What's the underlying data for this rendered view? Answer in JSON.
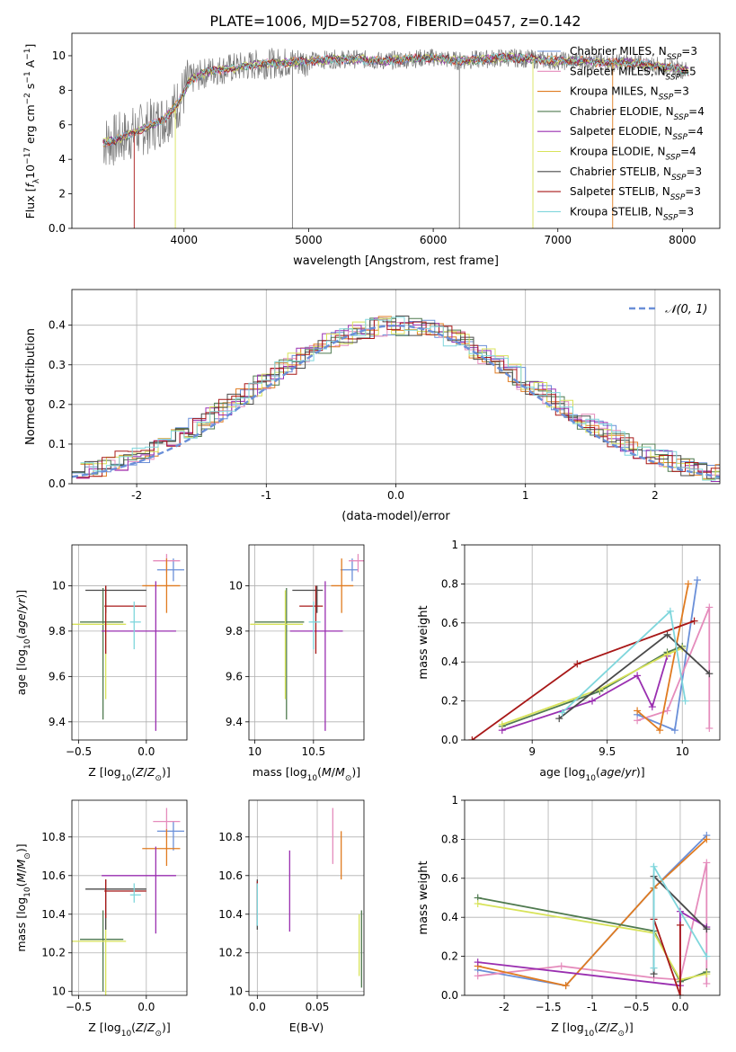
{
  "figure": {
    "title": "PLATE=1006, MJD=52708, FIBERID=0457, z=0.142"
  },
  "colors": {
    "chabrier_miles": "#6a8fd8",
    "salpeter_miles": "#e58cbc",
    "kroupa_miles": "#e07b20",
    "chabrier_elodie": "#4f7a4f",
    "salpeter_elodie": "#9a2fb0",
    "kroupa_elodie": "#d8e35a",
    "chabrier_stelib": "#4a4a4a",
    "salpeter_stelib": "#a81818",
    "kroupa_stelib": "#7fd6dc",
    "data": "#7a7a7a",
    "grid": "#b0b0b0"
  },
  "legend": {
    "spectrum": [
      {
        "label": "Chabrier MILES, N",
        "sub": "SSP",
        "tail": "=3",
        "color_key": "chabrier_miles"
      },
      {
        "label": "Salpeter MILES, N",
        "sub": "SSP",
        "tail": "=5",
        "color_key": "salpeter_miles"
      },
      {
        "label": "Kroupa MILES, N",
        "sub": "SSP",
        "tail": "=3",
        "color_key": "kroupa_miles"
      },
      {
        "label": "Chabrier ELODIE, N",
        "sub": "SSP",
        "tail": "=4",
        "color_key": "chabrier_elodie"
      },
      {
        "label": "Salpeter ELODIE, N",
        "sub": "SSP",
        "tail": "=4",
        "color_key": "salpeter_elodie"
      },
      {
        "label": "Kroupa ELODIE, N",
        "sub": "SSP",
        "tail": "=4",
        "color_key": "kroupa_elodie"
      },
      {
        "label": "Chabrier STELIB, N",
        "sub": "SSP",
        "tail": "=3",
        "color_key": "chabrier_stelib"
      },
      {
        "label": "Salpeter STELIB, N",
        "sub": "SSP",
        "tail": "=3",
        "color_key": "salpeter_stelib"
      },
      {
        "label": "Kroupa STELIB, N",
        "sub": "SSP",
        "tail": "=3",
        "color_key": "kroupa_stelib"
      }
    ],
    "normal": "𝒩(0, 1)"
  },
  "chart_data": [
    {
      "id": "spectrum",
      "type": "line",
      "xlabel": "wavelength [Angstrom, rest frame]",
      "ylabel": "Flux [fλ10⁻¹⁷ erg cm⁻² s⁻¹ A⁻¹]",
      "xlim": [
        3100,
        8300
      ],
      "ylim": [
        0,
        11.3
      ],
      "xticks": [
        4000,
        5000,
        6000,
        7000,
        8000
      ],
      "yticks": [
        0,
        2,
        4,
        6,
        8,
        10
      ],
      "grid": false,
      "legend_position": "upper right",
      "continuum": {
        "x": [
          3350,
          3450,
          3550,
          3650,
          3750,
          3850,
          3950,
          4050,
          4200,
          4400,
          4600,
          4800,
          5000,
          5200,
          5400,
          5600,
          5800,
          6000,
          6200,
          6400,
          6600,
          6800,
          7000,
          7200,
          7400,
          7600,
          7800,
          8000,
          8050
        ],
        "y": [
          5.0,
          5.1,
          5.4,
          5.7,
          6.0,
          6.4,
          7.2,
          8.6,
          9.1,
          9.3,
          9.5,
          9.6,
          9.7,
          9.8,
          9.8,
          9.7,
          9.8,
          9.9,
          9.7,
          9.8,
          9.9,
          9.8,
          9.7,
          9.7,
          9.6,
          9.6,
          9.4,
          9.2,
          9.1
        ]
      },
      "drops": [
        {
          "x": 3600,
          "color_key": "salpeter_stelib"
        },
        {
          "x": 3930,
          "color_key": "kroupa_elodie"
        },
        {
          "x": 4870,
          "color_key": "data"
        },
        {
          "x": 6210,
          "color_key": "data"
        },
        {
          "x": 6800,
          "color_key": "kroupa_elodie"
        },
        {
          "x": 7440,
          "color_key": "kroupa_miles"
        }
      ]
    },
    {
      "id": "residuals",
      "type": "step",
      "xlabel": "(data-model)/error",
      "ylabel": "Normed distribution",
      "xlim": [
        -2.5,
        2.5
      ],
      "ylim": [
        0,
        0.49
      ],
      "xticks": [
        -2,
        -1,
        0,
        1,
        2
      ],
      "yticks": [
        0.0,
        0.1,
        0.2,
        0.3,
        0.4
      ],
      "grid": true,
      "legend_position": "upper right"
    },
    {
      "id": "age_vs_Z",
      "type": "errorbar",
      "xlabel": "Z [log10(Z/Z⊙)]",
      "ylabel": "age [log10(age/yr)]",
      "xlim": [
        -0.55,
        0.3
      ],
      "ylim": [
        9.32,
        10.18
      ],
      "xticks": [
        -0.5,
        0.0
      ],
      "yticks": [
        9.4,
        9.6,
        9.8,
        10.0
      ],
      "grid": true,
      "points": [
        {
          "x": 0.2,
          "y": 10.07,
          "xerr": [
            0.12,
            0.08
          ],
          "yerr": [
            0.05,
            0.05
          ],
          "color_key": "chabrier_miles"
        },
        {
          "x": 0.15,
          "y": 10.11,
          "xerr": [
            0.1,
            0.1
          ],
          "yerr": [
            0.05,
            0.03
          ],
          "color_key": "salpeter_miles"
        },
        {
          "x": 0.15,
          "y": 10.0,
          "xerr": [
            0.18,
            0.1
          ],
          "yerr": [
            0.12,
            0.12
          ],
          "color_key": "kroupa_miles"
        },
        {
          "x": -0.32,
          "y": 9.84,
          "xerr": [
            0.17,
            0.15
          ],
          "yerr": [
            0.43,
            0.15
          ],
          "color_key": "chabrier_elodie"
        },
        {
          "x": 0.07,
          "y": 9.8,
          "xerr": [
            0.4,
            0.15
          ],
          "yerr": [
            0.44,
            0.22
          ],
          "color_key": "salpeter_elodie"
        },
        {
          "x": -0.3,
          "y": 9.83,
          "xerr": [
            0.25,
            0.15
          ],
          "yerr": [
            0.33,
            0.15
          ],
          "color_key": "kroupa_elodie"
        },
        {
          "x": -0.3,
          "y": 9.98,
          "xerr": [
            0.15,
            0.3
          ],
          "yerr": [
            0.1,
            0.02
          ],
          "color_key": "chabrier_stelib"
        },
        {
          "x": -0.3,
          "y": 9.91,
          "xerr": [
            0.01,
            0.3
          ],
          "yerr": [
            0.21,
            0.09
          ],
          "color_key": "salpeter_stelib"
        },
        {
          "x": -0.09,
          "y": 9.84,
          "xerr": [
            0.03,
            0.05
          ],
          "yerr": [
            0.12,
            0.09
          ],
          "color_key": "kroupa_stelib"
        }
      ]
    },
    {
      "id": "age_vs_mass",
      "type": "errorbar",
      "xlabel": "mass [log10(M/M⊙)]",
      "ylabel": "",
      "xlim": [
        9.95,
        10.93
      ],
      "ylim": [
        9.32,
        10.18
      ],
      "xticks": [
        10.0,
        10.5
      ],
      "yticks": [
        9.4,
        9.6,
        9.8,
        10.0
      ],
      "grid": true,
      "points": [
        {
          "x": 10.83,
          "y": 10.07,
          "xerr": [
            0.1,
            0.05
          ],
          "yerr": [
            0.05,
            0.05
          ],
          "color_key": "chabrier_miles"
        },
        {
          "x": 10.88,
          "y": 10.11,
          "xerr": [
            0.08,
            0.07
          ],
          "yerr": [
            0.05,
            0.03
          ],
          "color_key": "salpeter_miles"
        },
        {
          "x": 10.74,
          "y": 10.0,
          "xerr": [
            0.09,
            0.1
          ],
          "yerr": [
            0.12,
            0.12
          ],
          "color_key": "kroupa_miles"
        },
        {
          "x": 10.27,
          "y": 9.84,
          "xerr": [
            0.27,
            0.15
          ],
          "yerr": [
            0.43,
            0.15
          ],
          "color_key": "chabrier_elodie"
        },
        {
          "x": 10.6,
          "y": 9.8,
          "xerr": [
            0.3,
            0.15
          ],
          "yerr": [
            0.44,
            0.22
          ],
          "color_key": "salpeter_elodie"
        },
        {
          "x": 10.26,
          "y": 9.83,
          "xerr": [
            0.3,
            0.15
          ],
          "yerr": [
            0.33,
            0.15
          ],
          "color_key": "kroupa_elodie"
        },
        {
          "x": 10.53,
          "y": 9.98,
          "xerr": [
            0.21,
            0.05
          ],
          "yerr": [
            0.1,
            0.02
          ],
          "color_key": "chabrier_stelib"
        },
        {
          "x": 10.52,
          "y": 9.91,
          "xerr": [
            0.14,
            0.06
          ],
          "yerr": [
            0.21,
            0.09
          ],
          "color_key": "salpeter_stelib"
        },
        {
          "x": 10.5,
          "y": 9.84,
          "xerr": [
            0.04,
            0.06
          ],
          "yerr": [
            0.12,
            0.09
          ],
          "color_key": "kroupa_stelib"
        }
      ]
    },
    {
      "id": "weight_vs_age",
      "type": "line",
      "xlabel": "age [log10(age/yr)]",
      "ylabel": "mass weight",
      "xlim": [
        8.55,
        10.25
      ],
      "ylim": [
        0,
        1.0
      ],
      "xticks": [
        9.0,
        9.5,
        10.0
      ],
      "yticks": [
        0.0,
        0.2,
        0.4,
        0.6,
        0.8,
        1.0
      ],
      "grid": true,
      "series": [
        {
          "color_key": "chabrier_miles",
          "x": [
            9.7,
            9.95,
            10.1
          ],
          "y": [
            0.13,
            0.05,
            0.82
          ]
        },
        {
          "color_key": "salpeter_miles",
          "x": [
            9.7,
            9.9,
            10.18,
            10.18
          ],
          "y": [
            0.1,
            0.15,
            0.68,
            0.06
          ]
        },
        {
          "color_key": "kroupa_miles",
          "x": [
            9.7,
            9.85,
            10.04
          ],
          "y": [
            0.15,
            0.05,
            0.8
          ]
        },
        {
          "color_key": "chabrier_elodie",
          "x": [
            8.8,
            9.45,
            9.9,
            10.0
          ],
          "y": [
            0.07,
            0.25,
            0.45,
            0.48
          ]
        },
        {
          "color_key": "salpeter_elodie",
          "x": [
            8.8,
            9.4,
            9.7,
            9.8,
            9.9
          ],
          "y": [
            0.05,
            0.2,
            0.33,
            0.17,
            0.43
          ]
        },
        {
          "color_key": "kroupa_elodie",
          "x": [
            8.8,
            9.45,
            9.9,
            10.0
          ],
          "y": [
            0.08,
            0.26,
            0.44,
            0.47
          ]
        },
        {
          "color_key": "chabrier_stelib",
          "x": [
            9.18,
            9.9,
            10.18
          ],
          "y": [
            0.11,
            0.54,
            0.34
          ]
        },
        {
          "color_key": "salpeter_stelib",
          "x": [
            8.6,
            9.3,
            10.08
          ],
          "y": [
            0.0,
            0.39,
            0.61
          ]
        },
        {
          "color_key": "kroupa_stelib",
          "x": [
            9.2,
            9.92,
            10.02
          ],
          "y": [
            0.14,
            0.66,
            0.2
          ]
        }
      ]
    },
    {
      "id": "mass_vs_Z",
      "type": "errorbar",
      "xlabel": "Z [log10(Z/Z⊙)]",
      "ylabel": "mass [log10(M/M⊙)]",
      "xlim": [
        -0.55,
        0.3
      ],
      "ylim": [
        9.98,
        10.99
      ],
      "xticks": [
        -0.5,
        0.0
      ],
      "yticks": [
        10.0,
        10.2,
        10.4,
        10.6,
        10.8
      ],
      "grid": true,
      "points": [
        {
          "x": 0.2,
          "y": 10.83,
          "xerr": [
            0.12,
            0.08
          ],
          "yerr": [
            0.1,
            0.05
          ],
          "color_key": "chabrier_miles"
        },
        {
          "x": 0.15,
          "y": 10.88,
          "xerr": [
            0.1,
            0.1
          ],
          "yerr": [
            0.08,
            0.07
          ],
          "color_key": "salpeter_miles"
        },
        {
          "x": 0.15,
          "y": 10.74,
          "xerr": [
            0.18,
            0.1
          ],
          "yerr": [
            0.09,
            0.1
          ],
          "color_key": "kroupa_miles"
        },
        {
          "x": -0.32,
          "y": 10.27,
          "xerr": [
            0.17,
            0.15
          ],
          "yerr": [
            0.27,
            0.15
          ],
          "color_key": "chabrier_elodie"
        },
        {
          "x": 0.07,
          "y": 10.6,
          "xerr": [
            0.4,
            0.15
          ],
          "yerr": [
            0.3,
            0.15
          ],
          "color_key": "salpeter_elodie"
        },
        {
          "x": -0.3,
          "y": 10.26,
          "xerr": [
            0.25,
            0.15
          ],
          "yerr": [
            0.3,
            0.15
          ],
          "color_key": "kroupa_elodie"
        },
        {
          "x": -0.3,
          "y": 10.53,
          "xerr": [
            0.15,
            0.3
          ],
          "yerr": [
            0.21,
            0.05
          ],
          "color_key": "chabrier_stelib"
        },
        {
          "x": -0.3,
          "y": 10.52,
          "xerr": [
            0.01,
            0.3
          ],
          "yerr": [
            0.14,
            0.06
          ],
          "color_key": "salpeter_stelib"
        },
        {
          "x": -0.09,
          "y": 10.5,
          "xerr": [
            0.03,
            0.05
          ],
          "yerr": [
            0.04,
            0.06
          ],
          "color_key": "kroupa_stelib"
        }
      ]
    },
    {
      "id": "mass_vs_ebv",
      "type": "errorbar",
      "xlabel": "E(B-V)",
      "ylabel": "",
      "xlim": [
        -0.007,
        0.089
      ],
      "ylim": [
        9.98,
        10.99
      ],
      "xticks": [
        0.0,
        0.05
      ],
      "yticks": [
        10.0,
        10.2,
        10.4,
        10.6,
        10.8
      ],
      "grid": true,
      "points": [
        {
          "x": 0.0,
          "y": 10.44,
          "yerr": [
            0.1,
            0.12
          ],
          "color_key": "chabrier_miles"
        },
        {
          "x": 0.063,
          "y": 10.8,
          "yerr": [
            0.14,
            0.15
          ],
          "color_key": "salpeter_miles"
        },
        {
          "x": 0.07,
          "y": 10.7,
          "yerr": [
            0.12,
            0.13
          ],
          "color_key": "kroupa_miles"
        },
        {
          "x": 0.087,
          "y": 10.22,
          "yerr": [
            0.2,
            0.2
          ],
          "color_key": "chabrier_elodie"
        },
        {
          "x": 0.027,
          "y": 10.52,
          "yerr": [
            0.21,
            0.21
          ],
          "color_key": "salpeter_elodie"
        },
        {
          "x": 0.085,
          "y": 10.24,
          "yerr": [
            0.16,
            0.16
          ],
          "color_key": "kroupa_elodie"
        },
        {
          "x": 0.0,
          "y": 10.45,
          "yerr": [
            0.13,
            0.13
          ],
          "color_key": "chabrier_stelib"
        },
        {
          "x": 0.0,
          "y": 10.47,
          "yerr": [
            0.1,
            0.1
          ],
          "color_key": "salpeter_stelib"
        },
        {
          "x": 0.0,
          "y": 10.45,
          "yerr": [
            0.11,
            0.11
          ],
          "color_key": "kroupa_stelib"
        }
      ]
    },
    {
      "id": "weight_vs_Z",
      "type": "line",
      "xlabel": "Z [log10(Z/Z⊙)]",
      "ylabel": "mass weight",
      "xlim": [
        -2.45,
        0.45
      ],
      "ylim": [
        0,
        1.0
      ],
      "xticks": [
        -2.0,
        -1.5,
        -1.0,
        -0.5,
        0.0
      ],
      "yticks": [
        0.0,
        0.2,
        0.4,
        0.6,
        0.8,
        1.0
      ],
      "grid": true,
      "series": [
        {
          "color_key": "chabrier_miles",
          "x": [
            -2.3,
            -1.3,
            -0.3,
            0.3
          ],
          "y": [
            0.13,
            0.05,
            0.55,
            0.82
          ]
        },
        {
          "color_key": "salpeter_miles",
          "x": [
            -2.3,
            -1.35,
            -0.3,
            0.0,
            0.3,
            0.3
          ],
          "y": [
            0.1,
            0.15,
            0.09,
            0.08,
            0.68,
            0.06
          ]
        },
        {
          "color_key": "kroupa_miles",
          "x": [
            -2.3,
            -1.3,
            -0.3,
            0.3
          ],
          "y": [
            0.15,
            0.05,
            0.55,
            0.8
          ]
        },
        {
          "color_key": "chabrier_elodie",
          "x": [
            -2.3,
            -0.3,
            0.0,
            0.3
          ],
          "y": [
            0.5,
            0.33,
            0.07,
            0.12
          ]
        },
        {
          "color_key": "salpeter_elodie",
          "x": [
            -2.3,
            0.0,
            0.0,
            0.3
          ],
          "y": [
            0.17,
            0.05,
            0.43,
            0.35
          ]
        },
        {
          "color_key": "kroupa_elodie",
          "x": [
            -2.3,
            -0.3,
            0.0,
            0.3
          ],
          "y": [
            0.47,
            0.32,
            0.08,
            0.11
          ]
        },
        {
          "color_key": "chabrier_stelib",
          "x": [
            -0.3,
            -0.3,
            0.3
          ],
          "y": [
            0.11,
            0.61,
            0.34
          ]
        },
        {
          "color_key": "salpeter_stelib",
          "x": [
            -0.3,
            0.0,
            0.0
          ],
          "y": [
            0.39,
            0.0,
            0.36
          ]
        },
        {
          "color_key": "kroupa_stelib",
          "x": [
            -0.3,
            -0.3,
            0.3
          ],
          "y": [
            0.14,
            0.66,
            0.2
          ]
        }
      ]
    }
  ]
}
